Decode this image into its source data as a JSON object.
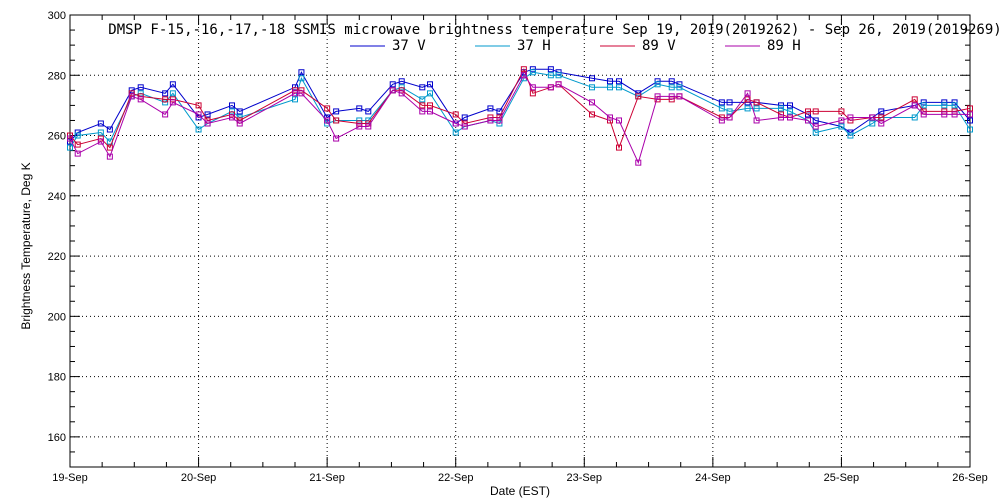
{
  "chart_data": {
    "type": "line",
    "title": "DMSP F-15,-16,-17,-18 SSMIS microwave brightness temperature Sep 19, 2019(2019262) - Sep 26, 2019(2019269)",
    "xlabel": "Date (EST)",
    "ylabel": "Brightness Temperature, Deg K",
    "xlim": [
      0,
      7
    ],
    "ylim": [
      150,
      300
    ],
    "x_ticks": [
      0,
      1,
      2,
      3,
      4,
      5,
      6,
      7
    ],
    "x_tick_labels": [
      "19-Sep",
      "20-Sep",
      "21-Sep",
      "22-Sep",
      "23-Sep",
      "24-Sep",
      "25-Sep",
      "26-Sep"
    ],
    "y_ticks": [
      160,
      180,
      200,
      220,
      240,
      260,
      280,
      300
    ],
    "y_tick_labels": [
      "160",
      "180",
      "200",
      "220",
      "240",
      "260",
      "280",
      "300"
    ],
    "grid": true,
    "legend_position": "top-center",
    "series": [
      {
        "name": "37 V",
        "color": "#0000cc",
        "x": [
          0.0,
          0.06,
          0.24,
          0.31,
          0.48,
          0.55,
          0.74,
          0.8,
          1.0,
          1.07,
          1.26,
          1.32,
          1.75,
          1.8,
          2.0,
          2.07,
          2.25,
          2.32,
          2.51,
          2.58,
          2.74,
          2.8,
          3.0,
          3.07,
          3.27,
          3.34,
          3.53,
          3.6,
          3.74,
          3.8,
          4.06,
          4.2,
          4.27,
          4.42,
          4.57,
          4.68,
          4.74,
          5.07,
          5.13,
          5.27,
          5.34,
          5.53,
          5.6,
          5.74,
          5.8,
          6.0,
          6.07,
          6.24,
          6.31,
          6.57,
          6.64,
          6.8,
          6.88,
          7.0
        ],
        "values": [
          258,
          261,
          264,
          262,
          275,
          276,
          274,
          277,
          266,
          267,
          270,
          268,
          276,
          281,
          266,
          268,
          269,
          268,
          277,
          278,
          276,
          277,
          264,
          266,
          269,
          268,
          281,
          282,
          282,
          281,
          279,
          278,
          278,
          274,
          278,
          278,
          277,
          271,
          271,
          271,
          271,
          270,
          270,
          267,
          265,
          263,
          261,
          266,
          268,
          270,
          271,
          271,
          271,
          265
        ]
      },
      {
        "name": "37 H",
        "color": "#0099cc",
        "x": [
          0.0,
          0.06,
          0.24,
          0.31,
          0.48,
          0.55,
          0.74,
          0.8,
          1.0,
          1.07,
          1.26,
          1.32,
          1.75,
          1.8,
          2.0,
          2.07,
          2.25,
          2.32,
          2.51,
          2.58,
          2.74,
          2.8,
          3.0,
          3.07,
          3.27,
          3.34,
          3.53,
          3.6,
          3.74,
          3.8,
          4.06,
          4.2,
          4.27,
          4.42,
          4.57,
          4.68,
          4.74,
          5.07,
          5.13,
          5.27,
          5.34,
          5.53,
          5.6,
          5.74,
          5.8,
          6.0,
          6.07,
          6.24,
          6.31,
          6.57,
          6.64,
          6.8,
          6.88,
          7.0
        ],
        "values": [
          256,
          260,
          261,
          258,
          273,
          274,
          271,
          274,
          262,
          264,
          268,
          266,
          272,
          279,
          264,
          265,
          265,
          265,
          275,
          276,
          272,
          274,
          261,
          263,
          265,
          264,
          279,
          281,
          280,
          280,
          276,
          276,
          276,
          273,
          277,
          276,
          276,
          269,
          268,
          269,
          269,
          269,
          268,
          265,
          261,
          263,
          260,
          264,
          266,
          266,
          270,
          270,
          270,
          262
        ]
      },
      {
        "name": "89 V",
        "color": "#cc0033",
        "x": [
          0.0,
          0.06,
          0.24,
          0.31,
          0.48,
          0.55,
          0.74,
          0.8,
          1.0,
          1.07,
          1.26,
          1.32,
          1.75,
          1.8,
          2.0,
          2.07,
          2.25,
          2.32,
          2.51,
          2.58,
          2.74,
          2.8,
          3.0,
          3.07,
          3.27,
          3.34,
          3.53,
          3.6,
          3.74,
          3.8,
          4.06,
          4.2,
          4.27,
          4.42,
          4.57,
          4.68,
          4.74,
          5.07,
          5.13,
          5.27,
          5.34,
          5.53,
          5.6,
          5.74,
          5.8,
          6.0,
          6.07,
          6.24,
          6.31,
          6.57,
          6.64,
          6.8,
          6.88,
          7.0
        ],
        "values": [
          260,
          257,
          259,
          256,
          274,
          273,
          272,
          272,
          270,
          265,
          267,
          265,
          275,
          275,
          269,
          265,
          264,
          264,
          275,
          275,
          270,
          270,
          267,
          264,
          266,
          266,
          282,
          274,
          276,
          277,
          267,
          265,
          256,
          273,
          272,
          272,
          273,
          266,
          266,
          272,
          271,
          267,
          266,
          268,
          268,
          268,
          265,
          266,
          266,
          272,
          268,
          268,
          268,
          269
        ]
      },
      {
        "name": "89 H",
        "color": "#aa00aa",
        "x": [
          0.0,
          0.06,
          0.24,
          0.31,
          0.48,
          0.55,
          0.74,
          0.8,
          1.0,
          1.07,
          1.26,
          1.32,
          1.75,
          1.8,
          2.0,
          2.07,
          2.25,
          2.32,
          2.51,
          2.58,
          2.74,
          2.8,
          3.0,
          3.07,
          3.27,
          3.34,
          3.53,
          3.6,
          3.74,
          3.8,
          4.06,
          4.2,
          4.27,
          4.42,
          4.57,
          4.68,
          4.74,
          5.07,
          5.13,
          5.27,
          5.34,
          5.53,
          5.6,
          5.74,
          5.8,
          6.0,
          6.07,
          6.24,
          6.31,
          6.57,
          6.64,
          6.8,
          6.88,
          7.0
        ],
        "values": [
          259,
          254,
          258,
          253,
          273,
          272,
          267,
          271,
          267,
          264,
          266,
          264,
          274,
          274,
          265,
          259,
          263,
          263,
          275,
          274,
          268,
          268,
          264,
          263,
          265,
          265,
          280,
          276,
          276,
          277,
          271,
          266,
          265,
          251,
          273,
          273,
          273,
          265,
          266,
          274,
          265,
          266,
          266,
          265,
          263,
          265,
          266,
          266,
          264,
          270,
          267,
          267,
          267,
          267
        ]
      }
    ]
  }
}
